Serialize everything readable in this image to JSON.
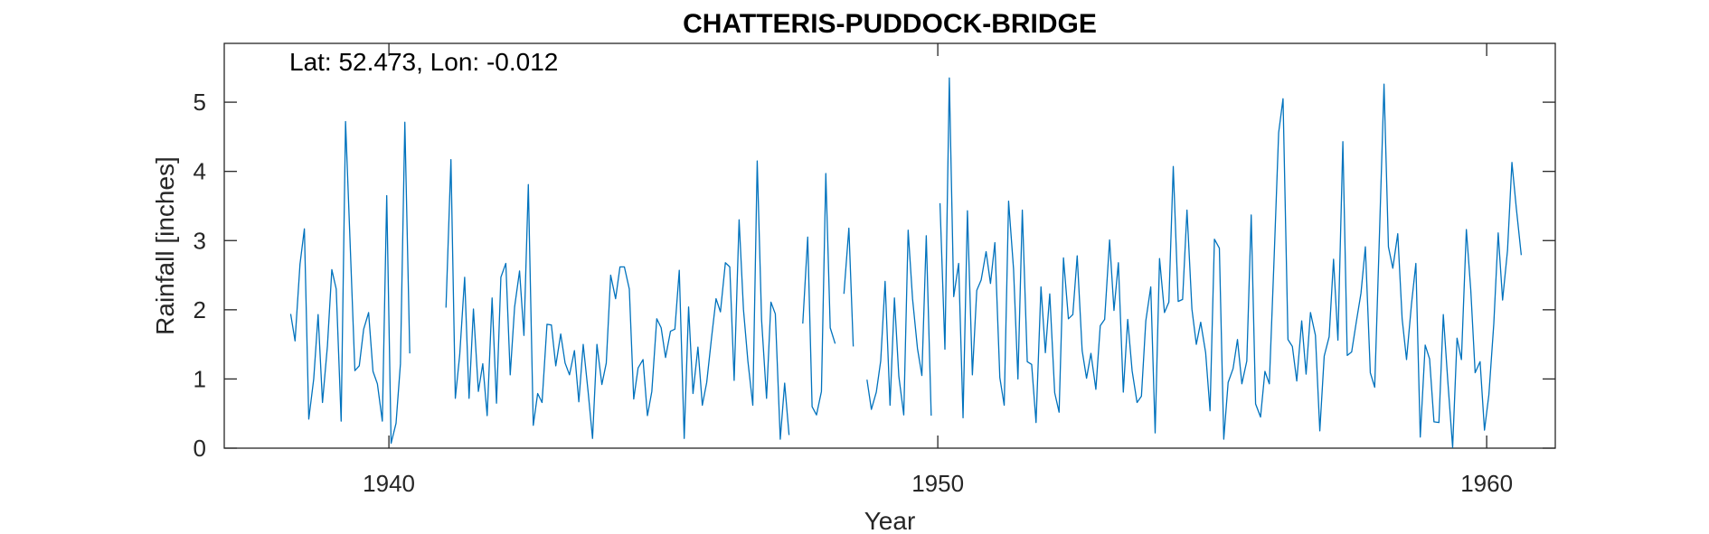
{
  "chart_data": {
    "type": "line",
    "title": "CHATTERIS-PUDDOCK-BRIDGE",
    "annotation": "Lat: 52.473, Lon: -0.012",
    "xlabel": "Year",
    "ylabel": "Rainfall [inches]",
    "xlim": [
      1937,
      1961.25
    ],
    "ylim": [
      0,
      5.85
    ],
    "xticks": [
      1940,
      1950,
      1960
    ],
    "yticks": [
      0,
      1,
      2,
      3,
      4,
      5
    ],
    "grid": false,
    "line_color": "#0072BD",
    "segments": [
      [
        [
          1938.21,
          1.94
        ],
        [
          1938.29,
          1.55
        ],
        [
          1938.38,
          2.66
        ],
        [
          1938.46,
          3.17
        ],
        [
          1938.54,
          0.42
        ],
        [
          1938.63,
          1.0
        ],
        [
          1938.71,
          1.93
        ],
        [
          1938.79,
          0.66
        ],
        [
          1938.88,
          1.48
        ],
        [
          1938.96,
          2.58
        ],
        [
          1939.04,
          2.3
        ],
        [
          1939.13,
          0.39
        ],
        [
          1939.21,
          4.72
        ],
        [
          1939.29,
          3.03
        ],
        [
          1939.38,
          1.12
        ],
        [
          1939.46,
          1.19
        ],
        [
          1939.54,
          1.72
        ],
        [
          1939.63,
          1.96
        ],
        [
          1939.71,
          1.11
        ],
        [
          1939.79,
          0.93
        ],
        [
          1939.88,
          0.39
        ],
        [
          1939.96,
          3.65
        ],
        [
          1940.04,
          0.07
        ],
        [
          1940.13,
          0.36
        ],
        [
          1940.21,
          1.22
        ],
        [
          1940.29,
          4.71
        ],
        [
          1940.38,
          1.37
        ]
      ],
      [
        [
          1941.04,
          2.03
        ],
        [
          1941.13,
          4.17
        ],
        [
          1941.21,
          0.72
        ],
        [
          1941.29,
          1.35
        ],
        [
          1941.38,
          2.47
        ],
        [
          1941.46,
          0.72
        ],
        [
          1941.54,
          2.01
        ],
        [
          1941.63,
          0.82
        ],
        [
          1941.71,
          1.22
        ],
        [
          1941.79,
          0.47
        ],
        [
          1941.88,
          2.17
        ],
        [
          1941.96,
          0.65
        ],
        [
          1942.04,
          2.47
        ],
        [
          1942.13,
          2.67
        ],
        [
          1942.21,
          1.06
        ],
        [
          1942.29,
          2.04
        ],
        [
          1942.38,
          2.56
        ],
        [
          1942.46,
          1.63
        ],
        [
          1942.54,
          3.81
        ],
        [
          1942.63,
          0.33
        ],
        [
          1942.71,
          0.79
        ],
        [
          1942.79,
          0.66
        ],
        [
          1942.88,
          1.79
        ],
        [
          1942.96,
          1.78
        ],
        [
          1943.04,
          1.19
        ],
        [
          1943.13,
          1.65
        ],
        [
          1943.21,
          1.23
        ],
        [
          1943.29,
          1.06
        ],
        [
          1943.38,
          1.41
        ],
        [
          1943.46,
          0.67
        ],
        [
          1943.54,
          1.5
        ],
        [
          1943.63,
          0.81
        ],
        [
          1943.71,
          0.14
        ],
        [
          1943.79,
          1.5
        ],
        [
          1943.88,
          0.92
        ],
        [
          1943.96,
          1.23
        ],
        [
          1944.04,
          2.5
        ],
        [
          1944.13,
          2.16
        ],
        [
          1944.21,
          2.62
        ],
        [
          1944.29,
          2.62
        ],
        [
          1944.38,
          2.3
        ],
        [
          1944.46,
          0.71
        ],
        [
          1944.54,
          1.16
        ],
        [
          1944.63,
          1.28
        ],
        [
          1944.71,
          0.47
        ],
        [
          1944.79,
          0.82
        ],
        [
          1944.88,
          1.87
        ],
        [
          1944.96,
          1.74
        ],
        [
          1945.04,
          1.31
        ],
        [
          1945.13,
          1.69
        ],
        [
          1945.21,
          1.72
        ],
        [
          1945.29,
          2.57
        ],
        [
          1945.38,
          0.14
        ],
        [
          1945.46,
          2.04
        ],
        [
          1945.54,
          0.79
        ],
        [
          1945.63,
          1.46
        ],
        [
          1945.71,
          0.62
        ],
        [
          1945.79,
          0.95
        ],
        [
          1945.88,
          1.61
        ],
        [
          1945.96,
          2.16
        ],
        [
          1946.04,
          1.97
        ],
        [
          1946.13,
          2.68
        ],
        [
          1946.21,
          2.62
        ],
        [
          1946.29,
          0.98
        ],
        [
          1946.38,
          3.3
        ],
        [
          1946.46,
          2.0
        ],
        [
          1946.54,
          1.26
        ],
        [
          1946.63,
          0.62
        ],
        [
          1946.71,
          4.15
        ],
        [
          1946.79,
          1.85
        ],
        [
          1946.88,
          0.72
        ],
        [
          1946.96,
          2.11
        ],
        [
          1947.04,
          1.94
        ],
        [
          1947.13,
          0.13
        ],
        [
          1947.21,
          0.94
        ],
        [
          1947.29,
          0.19
        ]
      ],
      [
        [
          1947.54,
          1.8
        ],
        [
          1947.63,
          3.05
        ],
        [
          1947.71,
          0.6
        ],
        [
          1947.79,
          0.48
        ],
        [
          1947.88,
          0.82
        ],
        [
          1947.96,
          3.97
        ],
        [
          1948.04,
          1.74
        ],
        [
          1948.13,
          1.51
        ]
      ],
      [
        [
          1948.29,
          2.23
        ],
        [
          1948.38,
          3.18
        ],
        [
          1948.46,
          1.47
        ]
      ],
      [
        [
          1948.71,
          0.99
        ],
        [
          1948.79,
          0.56
        ],
        [
          1948.88,
          0.81
        ],
        [
          1948.96,
          1.26
        ],
        [
          1949.04,
          2.41
        ],
        [
          1949.13,
          0.62
        ],
        [
          1949.21,
          2.17
        ],
        [
          1949.29,
          1.04
        ],
        [
          1949.38,
          0.48
        ],
        [
          1949.46,
          3.15
        ],
        [
          1949.54,
          2.16
        ],
        [
          1949.63,
          1.44
        ],
        [
          1949.71,
          1.05
        ],
        [
          1949.79,
          3.07
        ],
        [
          1949.88,
          0.47
        ]
      ],
      [
        [
          1950.04,
          3.54
        ],
        [
          1950.13,
          1.43
        ],
        [
          1950.21,
          5.35
        ],
        [
          1950.29,
          2.19
        ],
        [
          1950.38,
          2.67
        ],
        [
          1950.46,
          0.44
        ],
        [
          1950.54,
          3.43
        ],
        [
          1950.63,
          1.06
        ],
        [
          1950.71,
          2.28
        ],
        [
          1950.79,
          2.43
        ],
        [
          1950.88,
          2.84
        ],
        [
          1950.96,
          2.38
        ],
        [
          1951.04,
          2.97
        ],
        [
          1951.13,
          1.02
        ],
        [
          1951.21,
          0.62
        ],
        [
          1951.29,
          3.57
        ],
        [
          1951.38,
          2.59
        ],
        [
          1951.46,
          1.0
        ],
        [
          1951.54,
          3.44
        ],
        [
          1951.63,
          1.25
        ],
        [
          1951.71,
          1.21
        ],
        [
          1951.79,
          0.37
        ],
        [
          1951.88,
          2.33
        ],
        [
          1951.96,
          1.38
        ],
        [
          1952.04,
          2.23
        ],
        [
          1952.13,
          0.8
        ],
        [
          1952.21,
          0.52
        ],
        [
          1952.29,
          2.75
        ],
        [
          1952.38,
          1.87
        ],
        [
          1952.46,
          1.93
        ],
        [
          1952.54,
          2.78
        ],
        [
          1952.63,
          1.41
        ],
        [
          1952.71,
          1.01
        ],
        [
          1952.79,
          1.37
        ],
        [
          1952.88,
          0.85
        ],
        [
          1952.96,
          1.77
        ],
        [
          1953.04,
          1.86
        ],
        [
          1953.13,
          3.01
        ],
        [
          1953.21,
          1.99
        ],
        [
          1953.29,
          2.68
        ],
        [
          1953.38,
          0.81
        ],
        [
          1953.46,
          1.86
        ],
        [
          1953.54,
          1.12
        ],
        [
          1953.63,
          0.66
        ],
        [
          1953.71,
          0.75
        ],
        [
          1953.79,
          1.84
        ],
        [
          1953.88,
          2.33
        ],
        [
          1953.96,
          0.22
        ],
        [
          1954.04,
          2.74
        ],
        [
          1954.13,
          1.96
        ],
        [
          1954.21,
          2.11
        ],
        [
          1954.29,
          4.07
        ],
        [
          1954.38,
          2.12
        ],
        [
          1954.46,
          2.15
        ],
        [
          1954.54,
          3.44
        ],
        [
          1954.63,
          2.01
        ],
        [
          1954.71,
          1.5
        ],
        [
          1954.79,
          1.82
        ],
        [
          1954.88,
          1.38
        ],
        [
          1954.96,
          0.54
        ],
        [
          1955.04,
          3.02
        ],
        [
          1955.13,
          2.89
        ],
        [
          1955.21,
          0.13
        ],
        [
          1955.29,
          0.95
        ],
        [
          1955.38,
          1.15
        ],
        [
          1955.46,
          1.57
        ],
        [
          1955.54,
          0.93
        ],
        [
          1955.63,
          1.26
        ],
        [
          1955.71,
          3.37
        ],
        [
          1955.79,
          0.64
        ],
        [
          1955.88,
          0.45
        ],
        [
          1955.96,
          1.11
        ],
        [
          1956.04,
          0.93
        ],
        [
          1956.13,
          2.8
        ],
        [
          1956.21,
          4.56
        ],
        [
          1956.29,
          5.05
        ],
        [
          1956.38,
          1.57
        ],
        [
          1956.46,
          1.47
        ],
        [
          1956.54,
          0.97
        ],
        [
          1956.63,
          1.84
        ],
        [
          1956.71,
          1.07
        ],
        [
          1956.79,
          1.96
        ],
        [
          1956.88,
          1.63
        ],
        [
          1956.96,
          0.25
        ],
        [
          1957.04,
          1.33
        ],
        [
          1957.13,
          1.61
        ],
        [
          1957.21,
          2.73
        ],
        [
          1957.29,
          1.56
        ],
        [
          1957.38,
          4.43
        ],
        [
          1957.46,
          1.34
        ],
        [
          1957.54,
          1.39
        ],
        [
          1957.63,
          1.85
        ],
        [
          1957.71,
          2.24
        ],
        [
          1957.79,
          2.91
        ],
        [
          1957.88,
          1.09
        ],
        [
          1957.96,
          0.88
        ],
        [
          1958.04,
          2.91
        ],
        [
          1958.13,
          5.26
        ],
        [
          1958.21,
          2.91
        ],
        [
          1958.29,
          2.6
        ],
        [
          1958.38,
          3.1
        ],
        [
          1958.46,
          1.87
        ],
        [
          1958.54,
          1.28
        ],
        [
          1958.63,
          2.08
        ],
        [
          1958.71,
          2.67
        ],
        [
          1958.79,
          0.16
        ],
        [
          1958.88,
          1.49
        ],
        [
          1958.96,
          1.29
        ],
        [
          1959.04,
          0.38
        ],
        [
          1959.13,
          0.37
        ],
        [
          1959.21,
          1.93
        ],
        [
          1959.29,
          0.99
        ],
        [
          1959.38,
          0.01
        ],
        [
          1959.46,
          1.59
        ],
        [
          1959.54,
          1.28
        ],
        [
          1959.63,
          3.16
        ],
        [
          1959.71,
          2.29
        ],
        [
          1959.79,
          1.09
        ],
        [
          1959.88,
          1.25
        ],
        [
          1959.96,
          0.26
        ],
        [
          1960.04,
          0.77
        ],
        [
          1960.13,
          1.8
        ],
        [
          1960.21,
          3.11
        ],
        [
          1960.29,
          2.14
        ],
        [
          1960.38,
          2.86
        ],
        [
          1960.46,
          4.13
        ],
        [
          1960.54,
          3.47
        ],
        [
          1960.63,
          2.79
        ]
      ]
    ]
  }
}
